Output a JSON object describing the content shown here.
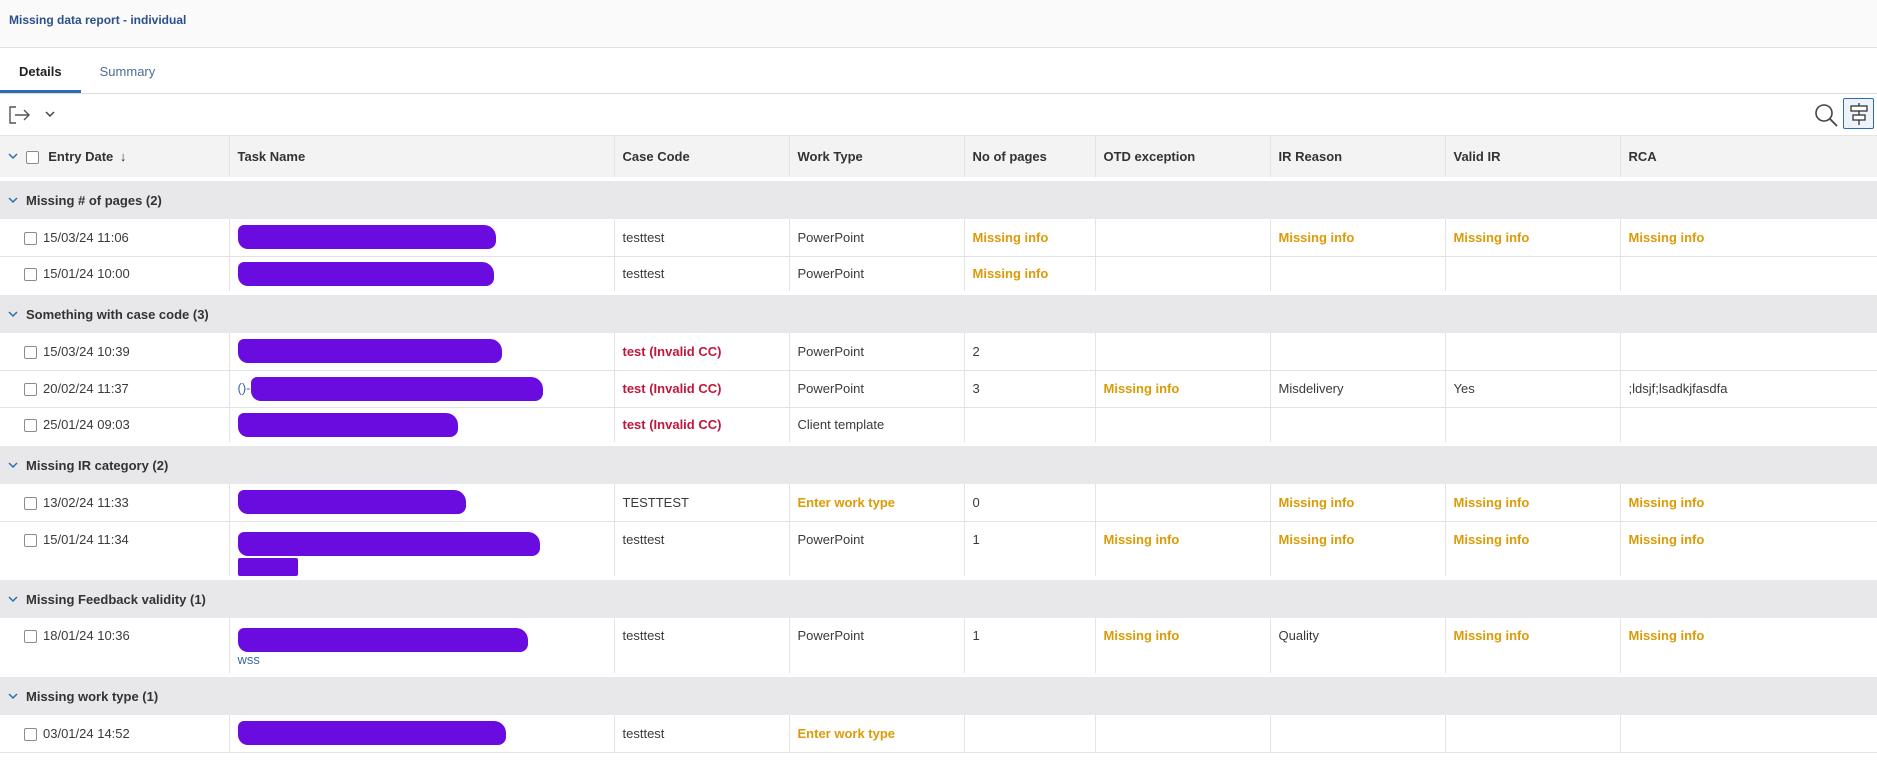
{
  "header": {
    "title": "Missing data report - individual"
  },
  "tabs": [
    {
      "label": "Details",
      "active": true
    },
    {
      "label": "Summary",
      "active": false
    }
  ],
  "toolbar": {
    "export_icon": "export-icon",
    "dropdown_icon": "chevron-down-icon",
    "search_icon": "search-icon",
    "group_icon": "group-by-icon"
  },
  "columns": {
    "entry_date": "Entry Date",
    "sort_indicator": "↓",
    "task_name": "Task Name",
    "case_code": "Case Code",
    "work_type": "Work Type",
    "pages": "No of pages",
    "otd": "OTD exception",
    "ir_reason": "IR Reason",
    "valid_ir": "Valid IR",
    "rca": "RCA"
  },
  "colors": {
    "missing": "#dc9a06",
    "invalid": "#c0183b",
    "redaction": "#6a0be0",
    "accent": "#2b6cb7"
  },
  "groups": [
    {
      "label": "Missing # of pages (2)",
      "rows": [
        {
          "date": "15/03/24 11:06",
          "task_prefix": "",
          "task_suffix": "",
          "case_code": "testtest",
          "case_code_invalid": false,
          "work_type": "PowerPoint",
          "work_type_missing": false,
          "pages": "Missing info",
          "pages_missing": true,
          "otd": "",
          "otd_missing": false,
          "ir_reason": "Missing info",
          "ir_reason_missing": true,
          "valid_ir": "Missing info",
          "valid_ir_missing": true,
          "rca": "Missing info",
          "rca_missing": true
        },
        {
          "date": "15/01/24 10:00",
          "task_prefix": "",
          "task_suffix": "",
          "case_code": "testtest",
          "case_code_invalid": false,
          "work_type": "PowerPoint",
          "work_type_missing": false,
          "pages": "Missing info",
          "pages_missing": true,
          "otd": "",
          "otd_missing": false,
          "ir_reason": "",
          "ir_reason_missing": false,
          "valid_ir": "",
          "valid_ir_missing": false,
          "rca": "",
          "rca_missing": false
        }
      ]
    },
    {
      "label": "Something with case code (3)",
      "rows": [
        {
          "date": "15/03/24 10:39",
          "task_prefix": "",
          "task_suffix": "",
          "case_code": "test  (Invalid CC)",
          "case_code_invalid": true,
          "work_type": "PowerPoint",
          "work_type_missing": false,
          "pages": "2",
          "pages_missing": false,
          "otd": "",
          "otd_missing": false,
          "ir_reason": "",
          "ir_reason_missing": false,
          "valid_ir": "",
          "valid_ir_missing": false,
          "rca": "",
          "rca_missing": false
        },
        {
          "date": "20/02/24 11:37",
          "task_prefix": "()-",
          "task_suffix": "",
          "case_code": "test  (Invalid CC)",
          "case_code_invalid": true,
          "work_type": "PowerPoint",
          "work_type_missing": false,
          "pages": "3",
          "pages_missing": false,
          "otd": "Missing info",
          "otd_missing": true,
          "ir_reason": "Misdelivery",
          "ir_reason_missing": false,
          "valid_ir": "Yes",
          "valid_ir_missing": false,
          "rca": ";ldsjf;lsadkjfasdfa",
          "rca_missing": false
        },
        {
          "date": "25/01/24 09:03",
          "task_prefix": "",
          "task_suffix": "",
          "case_code": "test  (Invalid CC)",
          "case_code_invalid": true,
          "work_type": "Client template",
          "work_type_missing": false,
          "pages": "",
          "pages_missing": false,
          "otd": "",
          "otd_missing": false,
          "ir_reason": "",
          "ir_reason_missing": false,
          "valid_ir": "",
          "valid_ir_missing": false,
          "rca": "",
          "rca_missing": false
        }
      ]
    },
    {
      "label": "Missing IR category (2)",
      "rows": [
        {
          "date": "13/02/24 11:33",
          "task_prefix": "",
          "task_suffix": "",
          "case_code": "TESTTEST",
          "case_code_invalid": false,
          "work_type": "Enter work type",
          "work_type_missing": true,
          "pages": "0",
          "pages_missing": false,
          "otd": "",
          "otd_missing": false,
          "ir_reason": "Missing info",
          "ir_reason_missing": true,
          "valid_ir": "Missing info",
          "valid_ir_missing": true,
          "rca": "Missing info",
          "rca_missing": true
        },
        {
          "date": "15/01/24 11:34",
          "task_prefix": "",
          "task_suffix": "",
          "case_code": "testtest",
          "case_code_invalid": false,
          "work_type": "PowerPoint",
          "work_type_missing": false,
          "pages": "1",
          "pages_missing": false,
          "otd": "Missing info",
          "otd_missing": true,
          "ir_reason": "Missing info",
          "ir_reason_missing": true,
          "valid_ir": "Missing info",
          "valid_ir_missing": true,
          "rca": "Missing info",
          "rca_missing": true
        }
      ]
    },
    {
      "label": "Missing Feedback validity (1)",
      "rows": [
        {
          "date": "18/01/24 10:36",
          "task_prefix": "",
          "task_suffix": "wss",
          "case_code": "testtest",
          "case_code_invalid": false,
          "work_type": "PowerPoint",
          "work_type_missing": false,
          "pages": "1",
          "pages_missing": false,
          "otd": "Missing info",
          "otd_missing": true,
          "ir_reason": "Quality",
          "ir_reason_missing": false,
          "valid_ir": "Missing info",
          "valid_ir_missing": true,
          "rca": "Missing info",
          "rca_missing": true
        }
      ]
    },
    {
      "label": "Missing work type (1)",
      "rows": [
        {
          "date": "03/01/24 14:52",
          "task_prefix": "",
          "task_suffix": "",
          "case_code": "testtest",
          "case_code_invalid": false,
          "work_type": "Enter work type",
          "work_type_missing": true,
          "pages": "",
          "pages_missing": false,
          "otd": "",
          "otd_missing": false,
          "ir_reason": "",
          "ir_reason_missing": false,
          "valid_ir": "",
          "valid_ir_missing": false,
          "rca": "",
          "rca_missing": false
        }
      ]
    }
  ]
}
